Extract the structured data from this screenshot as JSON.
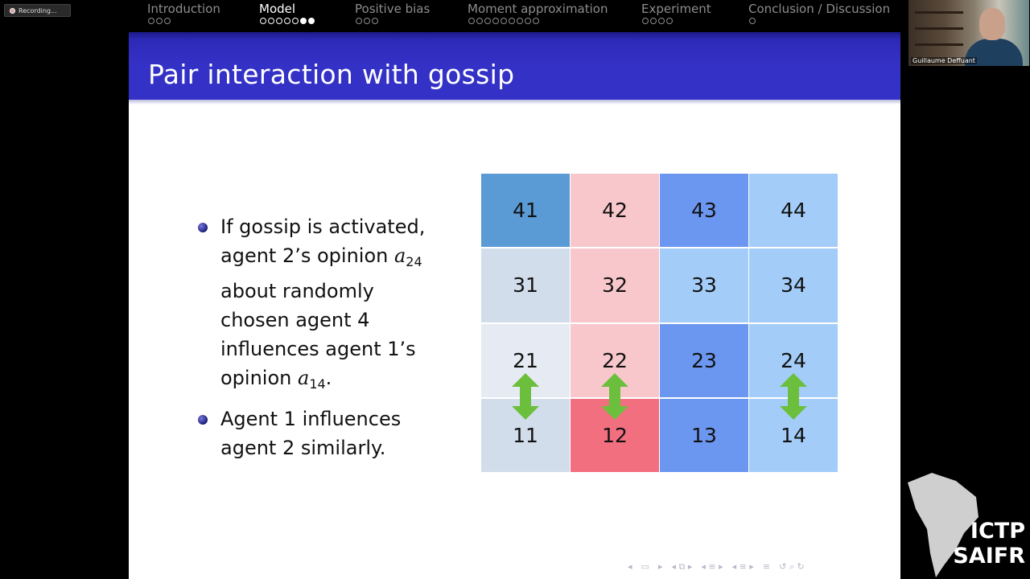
{
  "recording": {
    "label": "Recording..."
  },
  "nav": {
    "sections": [
      {
        "label": "Introduction",
        "dots": 3,
        "filled": [],
        "active": false
      },
      {
        "label": "Model",
        "dots": 7,
        "filled": [
          5,
          6
        ],
        "active": true
      },
      {
        "label": "Positive bias",
        "dots": 3,
        "filled": [],
        "active": false
      },
      {
        "label": "Moment approximation",
        "dots": 9,
        "filled": [],
        "active": false
      },
      {
        "label": "Experiment",
        "dots": 4,
        "filled": [],
        "active": false
      },
      {
        "label": "Conclusion / Discussion",
        "dots": 1,
        "filled": [],
        "active": false
      }
    ]
  },
  "slide": {
    "title": "Pair interaction with gossip",
    "bullet1": {
      "line1": "If gossip is activated,",
      "line2_pre": "agent 2’s opinion ",
      "var1": "a",
      "sub1": "24",
      "line3": "about randomly",
      "line4": "chosen agent 4",
      "line5": "influences agent 1’s",
      "line6_pre": "opinion ",
      "var2": "a",
      "sub2": "14",
      "line6_post": "."
    },
    "bullet2": {
      "line1": "Agent 1 influences",
      "line2": "agent 2 similarly."
    }
  },
  "grid": {
    "cells": [
      {
        "label": "41",
        "color": "#5b9bd5"
      },
      {
        "label": "42",
        "color": "#f8c7cc"
      },
      {
        "label": "43",
        "color": "#6b97f0"
      },
      {
        "label": "44",
        "color": "#a3cdf8"
      },
      {
        "label": "31",
        "color": "#d2ddec"
      },
      {
        "label": "32",
        "color": "#f8c7cc"
      },
      {
        "label": "33",
        "color": "#a3cdf8"
      },
      {
        "label": "34",
        "color": "#a3cdf8"
      },
      {
        "label": "21",
        "color": "#e6ebf3"
      },
      {
        "label": "22",
        "color": "#f8c7cc"
      },
      {
        "label": "23",
        "color": "#6b97f0"
      },
      {
        "label": "24",
        "color": "#a3cdf8"
      },
      {
        "label": "11",
        "color": "#d2ddec"
      },
      {
        "label": "12",
        "color": "#f26f80"
      },
      {
        "label": "13",
        "color": "#6b97f0"
      },
      {
        "label": "14",
        "color": "#a3cdf8"
      }
    ],
    "arrow_color": "#6cbf3c",
    "arrow_columns": [
      0,
      1,
      3
    ]
  },
  "webcam": {
    "name": "Guillaume Deffuant"
  },
  "logo": {
    "line1": "ICTP",
    "line2": "SAIFR"
  }
}
